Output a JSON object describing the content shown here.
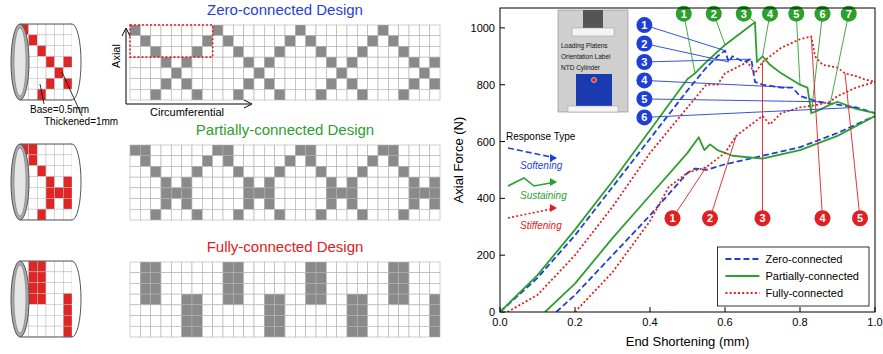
{
  "designs": [
    {
      "title": "Zero-connected Design",
      "color": "#1f3fd6",
      "grid": [
        "100000001000000010000000100000",
        "010000010100000101000001010000",
        "001000100010001000100010001000",
        "000101000001010000010100000101",
        "000010000000100000001000000010",
        "000101000001010000010100000101",
        "001000100010001000100010001000"
      ]
    },
    {
      "title": "Partially-connected Design",
      "color": "#2ca02c",
      "grid": [
        "110000001100000011000000110000",
        "010000010100000101000001010000",
        "001000100010001000100010001000",
        "000101000001010000010100000101",
        "000111000001110000011100000111",
        "000101000001010000010100000101",
        "001000100010001000100010001000"
      ]
    },
    {
      "title": "Fully-connected Design",
      "color": "#e02020",
      "grid": [
        "011000000110000001100000011000",
        "011000000110000001100000011000",
        "011000000110000001100000011000",
        "011001100110011001100110011001",
        "000001100000011000000110000001",
        "000001100000011000000110000001",
        "000001100000011000000110000001"
      ]
    }
  ],
  "labels": {
    "base": "Base=0.5mm",
    "thickened": "Thickened=1mm",
    "axial": "Axial",
    "circumferential": "Circumferential"
  },
  "chart_data": {
    "type": "line",
    "xlabel": "End Shortening (mm)",
    "ylabel": "Axial Force (N)",
    "xlim": [
      0,
      1
    ],
    "ylim": [
      0,
      1070
    ],
    "xticks": [
      {
        "value": 0,
        "label": "0.0"
      },
      {
        "value": 0.2,
        "label": "0.2"
      },
      {
        "value": 0.4,
        "label": "0.4"
      },
      {
        "value": 0.6,
        "label": "0.6"
      },
      {
        "value": 0.8,
        "label": "0.8"
      },
      {
        "value": 1,
        "label": "1.0"
      }
    ],
    "yticks": [
      0,
      200,
      400,
      600,
      800,
      1000
    ],
    "legend": "lower right",
    "series": [
      {
        "name": "Zero-connected",
        "color": "#1f3fd6",
        "line_style": "dashed",
        "x": [
          0,
          0.1,
          0.2,
          0.3,
          0.4,
          0.5,
          0.55,
          0.58,
          0.6,
          0.61,
          0.62,
          0.65,
          0.67,
          0.68,
          0.7,
          0.75,
          0.78,
          0.8,
          0.85,
          0.9,
          0.95,
          1.0
        ],
        "values": [
          0,
          120,
          270,
          440,
          610,
          780,
          860,
          900,
          920,
          880,
          900,
          880,
          890,
          810,
          800,
          790,
          790,
          760,
          740,
          730,
          720,
          700
        ]
      },
      {
        "name": "Zero-connected",
        "color": "#1f3fd6",
        "line_style": "dashed",
        "x": [
          0.15,
          0.2,
          0.3,
          0.4,
          0.5,
          0.52,
          0.55,
          0.6,
          0.7,
          0.8,
          0.9,
          1.0
        ],
        "values": [
          0,
          60,
          200,
          340,
          490,
          505,
          500,
          520,
          550,
          580,
          630,
          690
        ]
      },
      {
        "name": "Partially-connected",
        "color": "#2ca02c",
        "line_style": "solid",
        "x": [
          0,
          0.1,
          0.2,
          0.3,
          0.4,
          0.5,
          0.52,
          0.55,
          0.6,
          0.65,
          0.68,
          0.685,
          0.7,
          0.72,
          0.75,
          0.8,
          0.82,
          0.83,
          0.85,
          0.88,
          0.9,
          0.95,
          1.0
        ],
        "values": [
          0,
          130,
          290,
          460,
          640,
          820,
          840,
          880,
          940,
          990,
          1020,
          880,
          900,
          870,
          840,
          800,
          790,
          700,
          710,
          730,
          740,
          715,
          700
        ]
      },
      {
        "name": "Partially-connected",
        "color": "#2ca02c",
        "line_style": "solid",
        "x": [
          0.12,
          0.2,
          0.3,
          0.4,
          0.5,
          0.53,
          0.545,
          0.56,
          0.58,
          0.62,
          0.7,
          0.8,
          0.9,
          1.0
        ],
        "values": [
          0,
          100,
          260,
          410,
          560,
          615,
          570,
          590,
          570,
          550,
          540,
          570,
          620,
          690
        ]
      },
      {
        "name": "Fully-connected",
        "color": "#e02020",
        "line_style": "dotted",
        "x": [
          0.02,
          0.1,
          0.2,
          0.3,
          0.4,
          0.45,
          0.5,
          0.55,
          0.58,
          0.6,
          0.63,
          0.66,
          0.68,
          0.7,
          0.75,
          0.8,
          0.83,
          0.84,
          0.86,
          0.9,
          0.92,
          0.95,
          0.97,
          1.0
        ],
        "values": [
          0,
          60,
          200,
          370,
          560,
          640,
          720,
          800,
          800,
          840,
          860,
          880,
          840,
          880,
          930,
          960,
          970,
          900,
          870,
          860,
          840,
          830,
          820,
          810
        ]
      },
      {
        "name": "Fully-connected",
        "color": "#e02020",
        "line_style": "dotted",
        "x": [
          0.2,
          0.3,
          0.4,
          0.45,
          0.5,
          0.55,
          0.6,
          0.63,
          0.66,
          0.7,
          0.72,
          0.75,
          0.8,
          0.85,
          0.88,
          0.9,
          0.95,
          1.0
        ],
        "values": [
          0,
          140,
          320,
          440,
          490,
          510,
          560,
          620,
          650,
          690,
          660,
          700,
          720,
          730,
          740,
          760,
          790,
          810
        ]
      }
    ],
    "annotations": [
      {
        "text": "1",
        "color": "#1f3fd6",
        "x": 0.385,
        "y": 1010,
        "to": [
          0.6,
          920
        ]
      },
      {
        "text": "2",
        "color": "#1f3fd6",
        "x": 0.385,
        "y": 945,
        "to": [
          0.61,
          880
        ]
      },
      {
        "text": "3",
        "color": "#1f3fd6",
        "x": 0.385,
        "y": 880,
        "to": [
          0.67,
          890
        ]
      },
      {
        "text": "4",
        "color": "#1f3fd6",
        "x": 0.385,
        "y": 815,
        "to": [
          0.78,
          790
        ]
      },
      {
        "text": "5",
        "color": "#1f3fd6",
        "x": 0.385,
        "y": 750,
        "to": [
          0.85,
          740
        ]
      },
      {
        "text": "6",
        "color": "#1f3fd6",
        "x": 0.385,
        "y": 685,
        "to": [
          0.95,
          720
        ]
      },
      {
        "text": "1",
        "color": "#2ca02c",
        "x": 0.49,
        "y": 1050,
        "to": [
          0.52,
          840
        ]
      },
      {
        "text": "2",
        "color": "#2ca02c",
        "x": 0.57,
        "y": 1050,
        "to": [
          0.6,
          940
        ]
      },
      {
        "text": "3",
        "color": "#2ca02c",
        "x": 0.65,
        "y": 1050,
        "to": [
          0.68,
          1020
        ]
      },
      {
        "text": "4",
        "color": "#2ca02c",
        "x": 0.72,
        "y": 1050,
        "to": [
          0.7,
          900
        ]
      },
      {
        "text": "5",
        "color": "#2ca02c",
        "x": 0.79,
        "y": 1050,
        "to": [
          0.8,
          800
        ]
      },
      {
        "text": "6",
        "color": "#2ca02c",
        "x": 0.86,
        "y": 1050,
        "to": [
          0.83,
          700
        ]
      },
      {
        "text": "7",
        "color": "#2ca02c",
        "x": 0.93,
        "y": 1050,
        "to": [
          0.88,
          730
        ]
      },
      {
        "text": "1",
        "color": "#e02020",
        "x": 0.46,
        "y": 330,
        "to": [
          0.55,
          510
        ]
      },
      {
        "text": "2",
        "color": "#e02020",
        "x": 0.56,
        "y": 330,
        "to": [
          0.63,
          620
        ]
      },
      {
        "text": "3",
        "color": "#e02020",
        "x": 0.7,
        "y": 330,
        "to": [
          0.7,
          880
        ]
      },
      {
        "text": "4",
        "color": "#e02020",
        "x": 0.86,
        "y": 330,
        "to": [
          0.83,
          970
        ]
      },
      {
        "text": "5",
        "color": "#e02020",
        "x": 0.96,
        "y": 330,
        "to": [
          0.92,
          840
        ]
      }
    ],
    "response_type": {
      "title": "Response Type",
      "items": [
        {
          "text": "Softening",
          "color": "#1f3fd6",
          "line_style": "dashed"
        },
        {
          "text": "Sustaining",
          "color": "#2ca02c",
          "line_style": "solid"
        },
        {
          "text": "Stiffening",
          "color": "#e02020",
          "line_style": "dotted"
        }
      ]
    },
    "inset": {
      "labels": [
        "Loading Platens",
        "Orientation Label",
        "NTD Cylinder"
      ]
    }
  }
}
